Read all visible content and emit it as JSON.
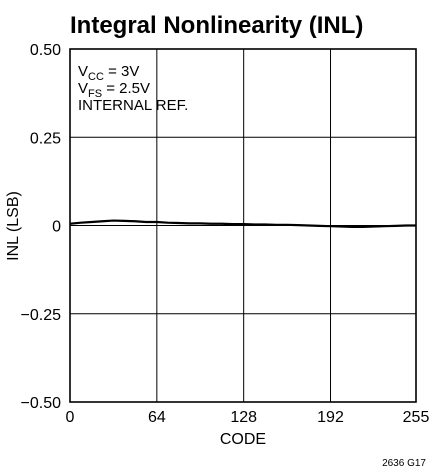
{
  "chart_data": {
    "type": "line",
    "title": "Integral Nonlinearity (INL)",
    "xlabel": "CODE",
    "ylabel": "INL (LSB)",
    "xlim": [
      0,
      255
    ],
    "ylim": [
      -0.5,
      0.5
    ],
    "x_ticks": [
      0,
      64,
      128,
      192,
      255
    ],
    "x_tick_labels": [
      "0",
      "64",
      "128",
      "192",
      "255"
    ],
    "y_ticks": [
      0.5,
      0.25,
      0,
      -0.25,
      -0.5
    ],
    "y_tick_labels": [
      "0.50",
      "0.25",
      "0",
      "−0.25",
      "−0.50"
    ],
    "grid": true,
    "annotations": [
      {
        "main": "V",
        "sub": "CC",
        "rest": " = 3V"
      },
      {
        "main": "V",
        "sub": "FS",
        "rest": " = 2.5V"
      },
      {
        "main": "INTERNAL REF.",
        "sub": "",
        "rest": ""
      }
    ],
    "figure_id": "2636 G17",
    "series": [
      {
        "color": "#000000",
        "x": [
          0,
          8,
          16,
          24,
          32,
          40,
          48,
          56,
          64,
          72,
          80,
          88,
          96,
          104,
          112,
          120,
          128,
          136,
          144,
          152,
          160,
          168,
          176,
          184,
          192,
          200,
          208,
          216,
          224,
          232,
          240,
          248,
          255
        ],
        "values": [
          0.005,
          0.008,
          0.01,
          0.012,
          0.014,
          0.013,
          0.012,
          0.01,
          0.01,
          0.008,
          0.007,
          0.006,
          0.006,
          0.005,
          0.005,
          0.004,
          0.004,
          0.003,
          0.003,
          0.002,
          0.002,
          0.001,
          0.0,
          -0.001,
          -0.002,
          -0.003,
          -0.004,
          -0.004,
          -0.003,
          -0.002,
          -0.001,
          0.0,
          0.0
        ]
      }
    ]
  }
}
